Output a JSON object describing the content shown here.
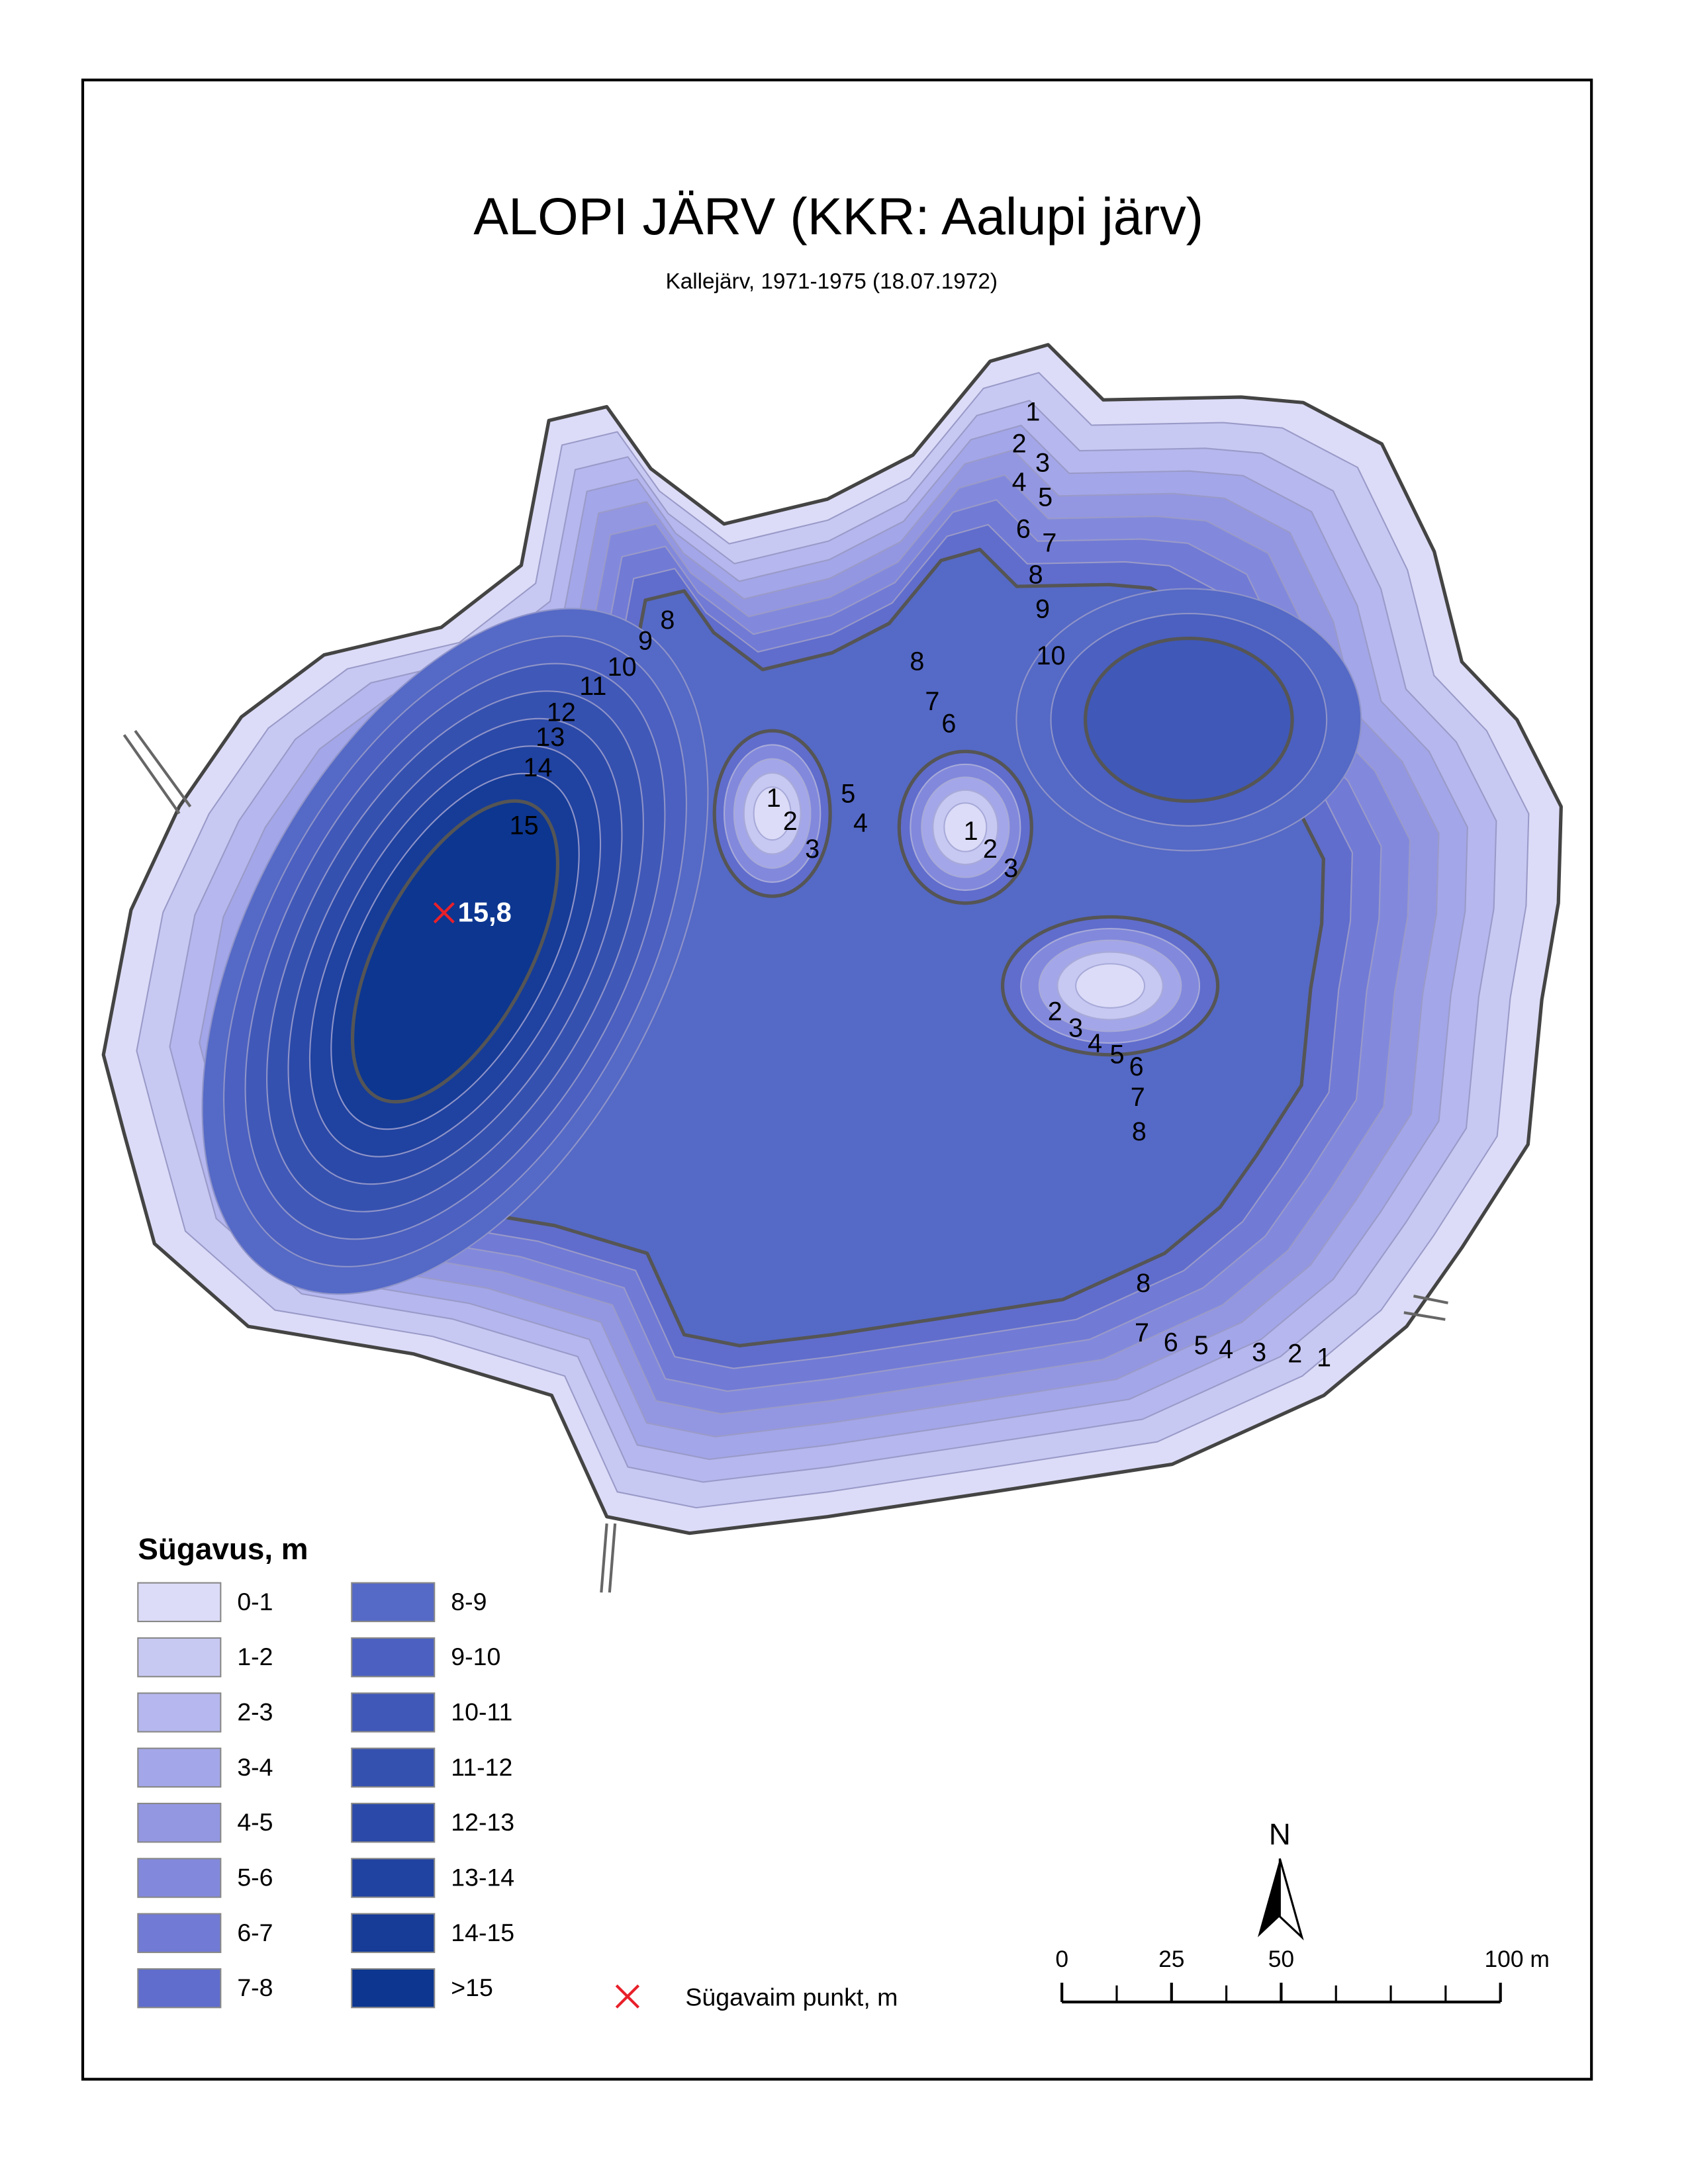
{
  "title": "ALOPI JÄRV (KKR: Aalupi järv)",
  "subtitle": "Kallejärv, 1971-1975 (18.07.1972)",
  "legend": {
    "title": "Sügavus, m",
    "items": [
      {
        "label": "0-1",
        "color": "#dcdcf8"
      },
      {
        "label": "1-2",
        "color": "#c8c9f3"
      },
      {
        "label": "2-3",
        "color": "#b5b7ee"
      },
      {
        "label": "3-4",
        "color": "#a3a6e8"
      },
      {
        "label": "4-5",
        "color": "#9397e2"
      },
      {
        "label": "5-6",
        "color": "#8289dc"
      },
      {
        "label": "6-7",
        "color": "#717ad5"
      },
      {
        "label": "7-8",
        "color": "#606dcd"
      },
      {
        "label": "8-9",
        "color": "#5569c6"
      },
      {
        "label": "9-10",
        "color": "#4b60c0"
      },
      {
        "label": "10-11",
        "color": "#4058b8"
      },
      {
        "label": "11-12",
        "color": "#3551b0"
      },
      {
        "label": "12-13",
        "color": "#2b49a8"
      },
      {
        "label": "13-14",
        "color": "#2042a0"
      },
      {
        "label": "14-15",
        "color": "#163c98"
      },
      {
        "label": ">15",
        "color": "#0c3690"
      }
    ],
    "deepest_point": "Sügavaim punkt, m"
  },
  "deepest_point_label": "15,8",
  "contour_labels": [
    "1",
    "2",
    "3",
    "4",
    "5",
    "6",
    "7",
    "8",
    "9",
    "10",
    "8",
    "9",
    "10",
    "11",
    "12",
    "13",
    "14",
    "15",
    "8",
    "7",
    "6",
    "1",
    "2",
    "3",
    "5",
    "4",
    "1",
    "2",
    "3",
    "2",
    "3",
    "4",
    "5",
    "6",
    "7",
    "8",
    "8",
    "7",
    "6",
    "5",
    "4",
    "3",
    "2",
    "1"
  ],
  "scale": {
    "ticks": [
      0,
      25,
      50,
      {
        "value": 100,
        "label": "100 m"
      }
    ]
  },
  "north": "N"
}
